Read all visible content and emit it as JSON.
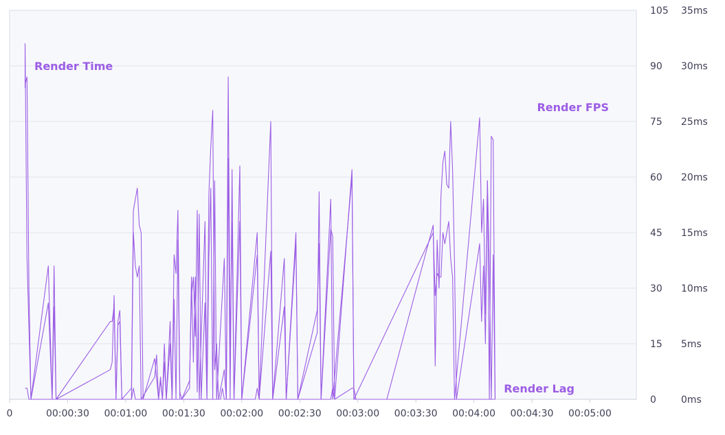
{
  "chart_data": {
    "type": "line",
    "x_ticks": [
      "0",
      "00:00:30",
      "00:01:00",
      "00:01:30",
      "00:02:00",
      "00:02:30",
      "00:03:00",
      "00:03:30",
      "00:04:00",
      "00:04:30",
      "00:05:00"
    ],
    "x_tick_seconds": [
      0,
      30,
      60,
      90,
      120,
      150,
      180,
      210,
      240,
      270,
      300
    ],
    "xlim": [
      0,
      324
    ],
    "y_fps_ticks": [
      "105",
      "90",
      "75",
      "60",
      "45",
      "30",
      "15",
      "0"
    ],
    "y_fps_values": [
      105,
      90,
      75,
      60,
      45,
      30,
      15,
      0
    ],
    "ylim_fps": [
      0,
      105
    ],
    "y_ms_ticks": [
      "35ms",
      "30ms",
      "25ms",
      "20ms",
      "15ms",
      "10ms",
      "5ms",
      "0ms"
    ],
    "y_ms_values": [
      35,
      30,
      25,
      20,
      15,
      10,
      5,
      0
    ],
    "ylim_ms": [
      0,
      35
    ],
    "grid": true,
    "color": "#9b5de5",
    "series": [
      {
        "name": "Render Time",
        "axis": "fps",
        "points": [
          [
            8,
            84
          ],
          [
            8,
            96
          ],
          [
            9,
            38
          ],
          [
            11,
            0
          ],
          [
            20,
            26
          ],
          [
            22,
            0
          ],
          [
            23,
            36
          ],
          [
            24,
            0
          ],
          [
            52,
            8
          ],
          [
            53,
            10
          ],
          [
            54,
            28
          ],
          [
            55,
            0
          ],
          [
            56,
            20
          ],
          [
            57,
            21
          ],
          [
            58,
            0
          ],
          [
            63,
            3
          ],
          [
            64,
            51
          ],
          [
            66,
            57
          ],
          [
            67,
            47
          ],
          [
            68,
            45
          ],
          [
            69,
            0
          ],
          [
            75,
            11
          ],
          [
            77,
            0
          ],
          [
            78,
            5
          ],
          [
            79,
            0
          ],
          [
            80,
            15
          ],
          [
            81,
            0
          ],
          [
            83,
            21
          ],
          [
            84,
            0
          ],
          [
            85,
            39
          ],
          [
            86,
            34
          ],
          [
            87,
            51
          ],
          [
            88,
            2
          ],
          [
            89,
            0
          ],
          [
            93,
            3
          ],
          [
            94,
            33
          ],
          [
            95,
            10
          ],
          [
            96,
            33
          ],
          [
            97,
            2
          ],
          [
            98,
            50
          ],
          [
            99,
            0
          ],
          [
            101,
            26
          ],
          [
            102,
            0
          ],
          [
            103,
            55
          ],
          [
            104,
            68
          ],
          [
            105,
            78
          ],
          [
            106,
            8
          ],
          [
            107,
            15
          ],
          [
            108,
            0
          ],
          [
            111,
            8
          ],
          [
            112,
            0
          ],
          [
            113,
            87
          ],
          [
            114,
            14
          ],
          [
            115,
            48
          ],
          [
            116,
            0
          ],
          [
            119,
            63
          ],
          [
            120,
            0
          ],
          [
            128,
            45
          ],
          [
            129,
            0
          ],
          [
            135,
            40
          ],
          [
            136,
            0
          ],
          [
            142,
            25
          ],
          [
            143,
            0
          ],
          [
            148,
            45
          ],
          [
            149,
            0
          ],
          [
            159,
            18
          ],
          [
            160,
            56
          ],
          [
            161,
            0
          ],
          [
            166,
            54
          ],
          [
            167,
            0
          ],
          [
            177,
            60
          ],
          [
            178,
            0
          ],
          [
            182,
            0
          ],
          [
            195,
            0
          ],
          [
            219,
            47
          ],
          [
            220,
            9
          ],
          [
            221,
            43
          ],
          [
            222,
            30
          ],
          [
            223,
            55
          ],
          [
            224,
            64
          ],
          [
            225,
            67
          ],
          [
            226,
            58
          ],
          [
            227,
            57
          ],
          [
            228,
            75
          ],
          [
            229,
            62
          ],
          [
            230,
            37
          ],
          [
            231,
            0
          ],
          [
            243,
            42
          ],
          [
            244,
            21
          ],
          [
            245,
            36
          ],
          [
            246,
            15
          ],
          [
            247,
            59
          ],
          [
            248,
            0
          ],
          [
            249,
            71
          ],
          [
            250,
            70
          ],
          [
            251,
            0
          ]
        ]
      },
      {
        "name": "Render FPS",
        "axis": "fps",
        "points": [
          [
            8,
            85
          ],
          [
            9,
            87
          ],
          [
            10,
            30
          ],
          [
            11,
            0
          ],
          [
            20,
            36
          ],
          [
            22,
            0
          ],
          [
            23,
            25
          ],
          [
            24,
            0
          ],
          [
            52,
            21
          ],
          [
            53,
            21
          ],
          [
            54,
            25
          ],
          [
            55,
            0
          ],
          [
            56,
            21
          ],
          [
            57,
            24
          ],
          [
            58,
            0
          ],
          [
            63,
            0
          ],
          [
            64,
            45
          ],
          [
            65,
            36
          ],
          [
            66,
            33
          ],
          [
            67,
            36
          ],
          [
            68,
            0
          ],
          [
            75,
            6
          ],
          [
            76,
            12
          ],
          [
            77,
            0
          ],
          [
            78,
            6
          ],
          [
            79,
            0
          ],
          [
            80,
            10
          ],
          [
            81,
            0
          ],
          [
            83,
            15
          ],
          [
            84,
            0
          ],
          [
            85,
            27
          ],
          [
            86,
            0
          ],
          [
            87,
            43
          ],
          [
            88,
            0
          ],
          [
            89,
            0
          ],
          [
            93,
            5
          ],
          [
            94,
            28
          ],
          [
            95,
            33
          ],
          [
            96,
            17
          ],
          [
            97,
            51
          ],
          [
            98,
            0
          ],
          [
            101,
            48
          ],
          [
            102,
            0
          ],
          [
            103,
            38
          ],
          [
            104,
            57
          ],
          [
            105,
            0
          ],
          [
            106,
            59
          ],
          [
            107,
            0
          ],
          [
            111,
            38
          ],
          [
            112,
            0
          ],
          [
            113,
            65
          ],
          [
            114,
            0
          ],
          [
            115,
            62
          ],
          [
            116,
            0
          ],
          [
            119,
            48
          ],
          [
            120,
            0
          ],
          [
            128,
            39
          ],
          [
            129,
            0
          ],
          [
            135,
            75
          ],
          [
            136,
            0
          ],
          [
            142,
            38
          ],
          [
            143,
            0
          ],
          [
            148,
            42
          ],
          [
            149,
            0
          ],
          [
            159,
            24
          ],
          [
            160,
            42
          ],
          [
            161,
            0
          ],
          [
            166,
            46
          ],
          [
            167,
            44
          ],
          [
            168,
            0
          ],
          [
            177,
            62
          ],
          [
            178,
            0
          ],
          [
            219,
            45
          ],
          [
            220,
            28
          ],
          [
            221,
            34
          ],
          [
            222,
            33
          ],
          [
            223,
            33
          ],
          [
            224,
            45
          ],
          [
            225,
            42
          ],
          [
            226,
            45
          ],
          [
            227,
            48
          ],
          [
            228,
            38
          ],
          [
            229,
            33
          ],
          [
            230,
            0
          ],
          [
            243,
            76
          ],
          [
            244,
            45
          ],
          [
            245,
            54
          ],
          [
            246,
            23
          ],
          [
            247,
            59
          ],
          [
            248,
            35
          ],
          [
            249,
            0
          ],
          [
            250,
            39
          ],
          [
            251,
            0
          ]
        ]
      },
      {
        "name": "Render Lag",
        "axis": "ms",
        "points": [
          [
            8,
            1
          ],
          [
            9,
            1
          ],
          [
            10,
            0
          ],
          [
            63,
            0
          ],
          [
            64,
            1
          ],
          [
            65,
            0
          ],
          [
            88,
            0
          ],
          [
            89,
            0
          ],
          [
            109,
            0
          ],
          [
            110,
            1
          ],
          [
            111,
            0
          ],
          [
            127,
            0
          ],
          [
            128,
            1
          ],
          [
            129,
            0
          ],
          [
            166,
            0
          ],
          [
            167,
            1
          ],
          [
            168,
            0
          ],
          [
            177,
            1
          ],
          [
            178,
            1
          ],
          [
            179,
            0
          ],
          [
            251,
            0
          ]
        ]
      }
    ]
  }
}
